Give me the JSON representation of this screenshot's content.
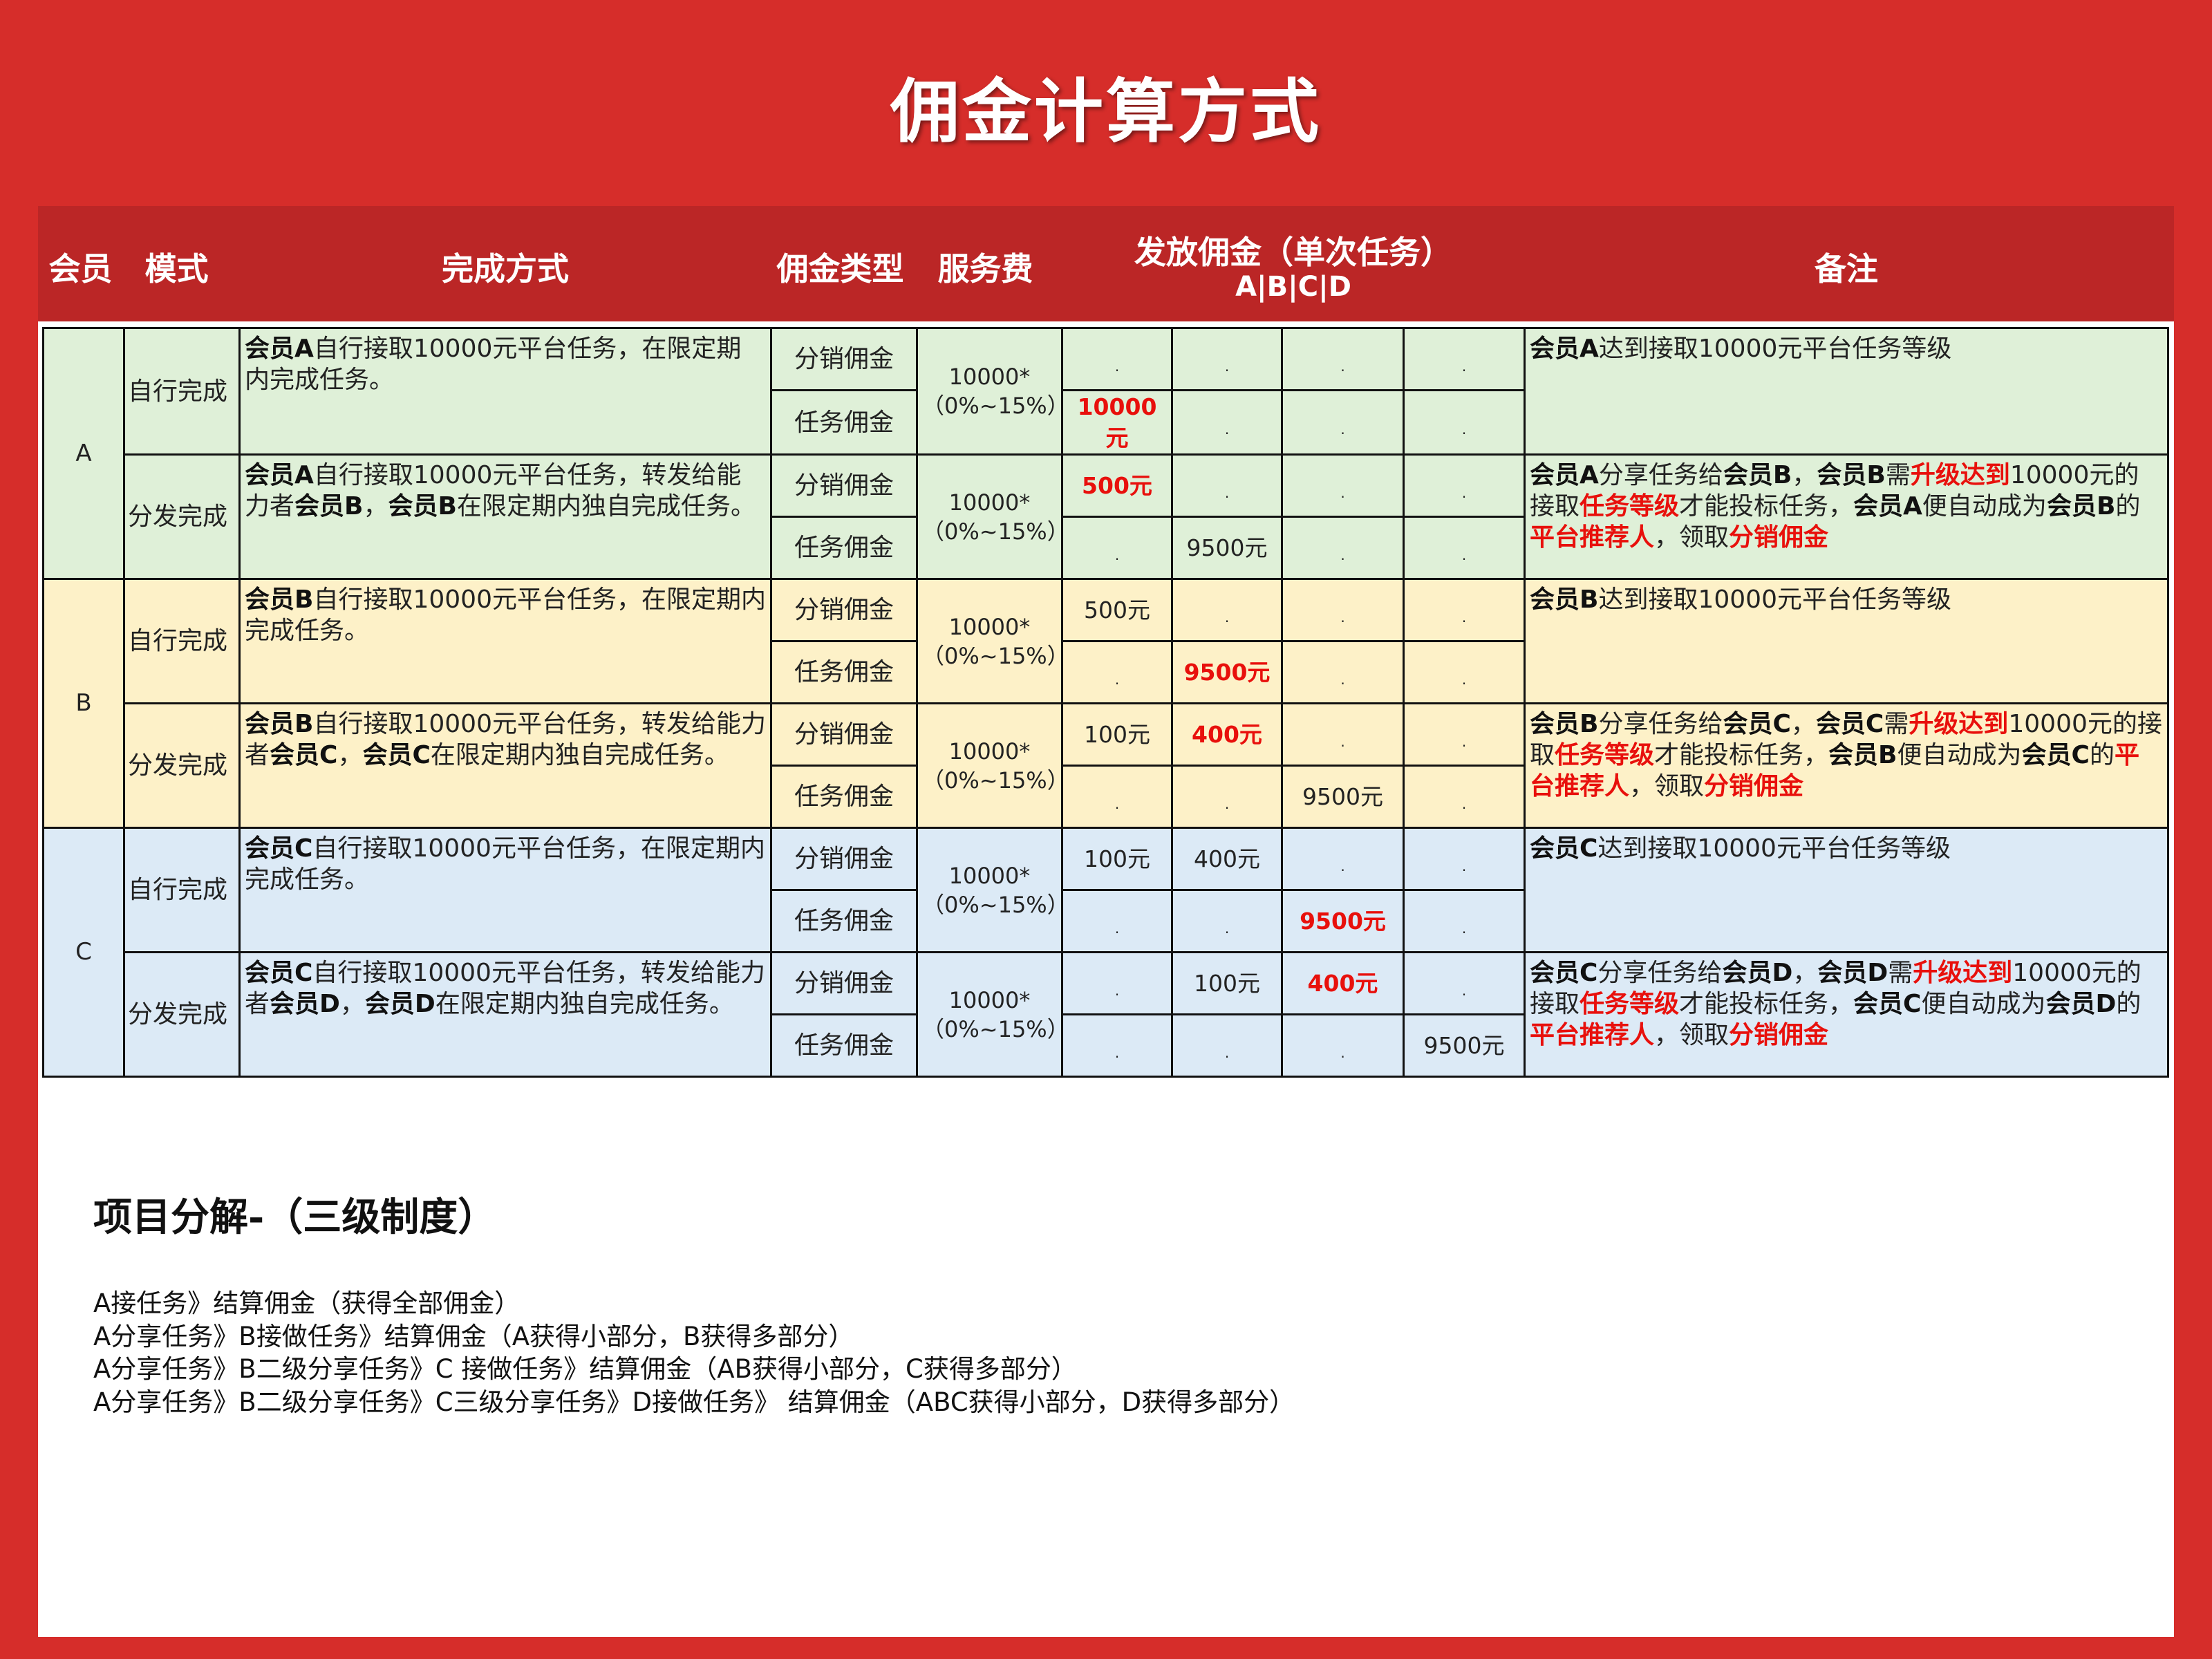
{
  "title": "佣金计算方式",
  "colors": {
    "background": "#d62d2a",
    "header_band": "#bb2626",
    "highlight": "#e8100c",
    "row_A": "#dff0d8",
    "row_B": "#fdf1c8",
    "row_C": "#dceaf6"
  },
  "table": {
    "headers": {
      "member": "会员",
      "mode": "模式",
      "method": "完成方式",
      "type": "佣金类型",
      "fee": "服务费",
      "payout": "发放佣金（单次任务）",
      "payout_sub": "A|B|C|D",
      "remark": "备注"
    },
    "members": [
      {
        "label": "A",
        "modes": [
          {
            "label": "自行完成",
            "method": [
              {
                "t": "会员A",
                "s": "b"
              },
              {
                "t": "自行接取10000元平台任务，在限定期内完成任务。",
                "s": "n"
              }
            ],
            "fee": [
              "10000*",
              "（0%~15%）"
            ],
            "rows": [
              {
                "type": "分销佣金",
                "values": [
                  {
                    "t": ".",
                    "s": "d"
                  },
                  {
                    "t": ".",
                    "s": "d"
                  },
                  {
                    "t": ".",
                    "s": "d"
                  },
                  {
                    "t": ".",
                    "s": "d"
                  }
                ]
              },
              {
                "type": "任务佣金",
                "values": [
                  {
                    "t": "10000元",
                    "s": "r"
                  },
                  {
                    "t": ".",
                    "s": "d"
                  },
                  {
                    "t": ".",
                    "s": "d"
                  },
                  {
                    "t": ".",
                    "s": "d"
                  }
                ]
              }
            ],
            "remark": [
              {
                "t": "会员A",
                "s": "b"
              },
              {
                "t": "达到接取10000元平台任务等级",
                "s": "n"
              }
            ]
          },
          {
            "label": "分发完成",
            "method": [
              {
                "t": "会员A",
                "s": "b"
              },
              {
                "t": "自行接取10000元平台任务，转发给能力者",
                "s": "n"
              },
              {
                "t": "会员B",
                "s": "b"
              },
              {
                "t": "，",
                "s": "n"
              },
              {
                "t": "会员B",
                "s": "b"
              },
              {
                "t": "在限定期内独自完成任务。",
                "s": "n"
              }
            ],
            "fee": [
              "10000*",
              "（0%~15%）"
            ],
            "rows": [
              {
                "type": "分销佣金",
                "values": [
                  {
                    "t": "500元",
                    "s": "r"
                  },
                  {
                    "t": ".",
                    "s": "d"
                  },
                  {
                    "t": ".",
                    "s": "d"
                  },
                  {
                    "t": ".",
                    "s": "d"
                  }
                ]
              },
              {
                "type": "任务佣金",
                "values": [
                  {
                    "t": ".",
                    "s": "d"
                  },
                  {
                    "t": "9500元",
                    "s": "n"
                  },
                  {
                    "t": ".",
                    "s": "d"
                  },
                  {
                    "t": ".",
                    "s": "d"
                  }
                ]
              }
            ],
            "remark": [
              {
                "t": "会员A",
                "s": "b"
              },
              {
                "t": "分享任务给",
                "s": "n"
              },
              {
                "t": "会员B",
                "s": "b"
              },
              {
                "t": "，",
                "s": "n"
              },
              {
                "t": "会员B",
                "s": "b"
              },
              {
                "t": "需",
                "s": "n"
              },
              {
                "t": "升级达到",
                "s": "r"
              },
              {
                "t": "10000元的接取",
                "s": "n"
              },
              {
                "t": "任务等级",
                "s": "r"
              },
              {
                "t": "才能投标任务，",
                "s": "n"
              },
              {
                "t": "会员A",
                "s": "b"
              },
              {
                "t": "便自动成为",
                "s": "n"
              },
              {
                "t": "会员B",
                "s": "b"
              },
              {
                "t": "的",
                "s": "n"
              },
              {
                "t": "平台推荐人",
                "s": "r"
              },
              {
                "t": "，领取",
                "s": "n"
              },
              {
                "t": "分销佣金",
                "s": "r"
              }
            ]
          }
        ]
      },
      {
        "label": "B",
        "modes": [
          {
            "label": "自行完成",
            "method": [
              {
                "t": "会员B",
                "s": "b"
              },
              {
                "t": "自行接取10000元平台任务，在限定期内完成任务。",
                "s": "n"
              }
            ],
            "fee": [
              "10000*",
              "（0%~15%）"
            ],
            "rows": [
              {
                "type": "分销佣金",
                "values": [
                  {
                    "t": "500元",
                    "s": "n"
                  },
                  {
                    "t": ".",
                    "s": "d"
                  },
                  {
                    "t": ".",
                    "s": "d"
                  },
                  {
                    "t": ".",
                    "s": "d"
                  }
                ]
              },
              {
                "type": "任务佣金",
                "values": [
                  {
                    "t": ".",
                    "s": "d"
                  },
                  {
                    "t": "9500元",
                    "s": "r"
                  },
                  {
                    "t": ".",
                    "s": "d"
                  },
                  {
                    "t": ".",
                    "s": "d"
                  }
                ]
              }
            ],
            "remark": [
              {
                "t": "会员B",
                "s": "b"
              },
              {
                "t": "达到接取10000元平台任务等级",
                "s": "n"
              }
            ]
          },
          {
            "label": "分发完成",
            "method": [
              {
                "t": "会员B",
                "s": "b"
              },
              {
                "t": "自行接取10000元平台任务，转发给能力者",
                "s": "n"
              },
              {
                "t": "会员C",
                "s": "b"
              },
              {
                "t": "，",
                "s": "n"
              },
              {
                "t": "会员C",
                "s": "b"
              },
              {
                "t": "在限定期内独自完成任务。",
                "s": "n"
              }
            ],
            "fee": [
              "10000*",
              "（0%~15%）"
            ],
            "rows": [
              {
                "type": "分销佣金",
                "values": [
                  {
                    "t": "100元",
                    "s": "n"
                  },
                  {
                    "t": "400元",
                    "s": "r"
                  },
                  {
                    "t": ".",
                    "s": "d"
                  },
                  {
                    "t": ".",
                    "s": "d"
                  }
                ]
              },
              {
                "type": "任务佣金",
                "values": [
                  {
                    "t": ".",
                    "s": "d"
                  },
                  {
                    "t": ".",
                    "s": "d"
                  },
                  {
                    "t": "9500元",
                    "s": "n"
                  },
                  {
                    "t": ".",
                    "s": "d"
                  }
                ]
              }
            ],
            "remark": [
              {
                "t": "会员B",
                "s": "b"
              },
              {
                "t": "分享任务给",
                "s": "n"
              },
              {
                "t": "会员C",
                "s": "b"
              },
              {
                "t": "，",
                "s": "n"
              },
              {
                "t": "会员C",
                "s": "b"
              },
              {
                "t": "需",
                "s": "n"
              },
              {
                "t": "升级达到",
                "s": "r"
              },
              {
                "t": "10000元的接取",
                "s": "n"
              },
              {
                "t": "任务等级",
                "s": "r"
              },
              {
                "t": "才能投标任务，",
                "s": "n"
              },
              {
                "t": "会员B",
                "s": "b"
              },
              {
                "t": "便自动成为",
                "s": "n"
              },
              {
                "t": "会员C",
                "s": "b"
              },
              {
                "t": "的",
                "s": "n"
              },
              {
                "t": "平台推荐人",
                "s": "r"
              },
              {
                "t": "，领取",
                "s": "n"
              },
              {
                "t": "分销佣金",
                "s": "r"
              }
            ]
          }
        ]
      },
      {
        "label": "C",
        "modes": [
          {
            "label": "自行完成",
            "method": [
              {
                "t": "会员C",
                "s": "b"
              },
              {
                "t": "自行接取10000元平台任务，在限定期内完成任务。",
                "s": "n"
              }
            ],
            "fee": [
              "10000*",
              "（0%~15%）"
            ],
            "rows": [
              {
                "type": "分销佣金",
                "values": [
                  {
                    "t": "100元",
                    "s": "n"
                  },
                  {
                    "t": "400元",
                    "s": "n"
                  },
                  {
                    "t": ".",
                    "s": "d"
                  },
                  {
                    "t": ".",
                    "s": "d"
                  }
                ]
              },
              {
                "type": "任务佣金",
                "values": [
                  {
                    "t": ".",
                    "s": "d"
                  },
                  {
                    "t": ".",
                    "s": "d"
                  },
                  {
                    "t": "9500元",
                    "s": "r"
                  },
                  {
                    "t": ".",
                    "s": "d"
                  }
                ]
              }
            ],
            "remark": [
              {
                "t": "会员C",
                "s": "b"
              },
              {
                "t": "达到接取10000元平台任务等级",
                "s": "n"
              }
            ]
          },
          {
            "label": "分发完成",
            "method": [
              {
                "t": "会员C",
                "s": "b"
              },
              {
                "t": "自行接取10000元平台任务，转发给能力者",
                "s": "n"
              },
              {
                "t": "会员D",
                "s": "b"
              },
              {
                "t": "，",
                "s": "n"
              },
              {
                "t": "会员D",
                "s": "b"
              },
              {
                "t": "在限定期内独自完成任务。",
                "s": "n"
              }
            ],
            "fee": [
              "10000*",
              "（0%~15%）"
            ],
            "rows": [
              {
                "type": "分销佣金",
                "values": [
                  {
                    "t": ".",
                    "s": "d"
                  },
                  {
                    "t": "100元",
                    "s": "n"
                  },
                  {
                    "t": "400元",
                    "s": "r"
                  },
                  {
                    "t": ".",
                    "s": "d"
                  }
                ]
              },
              {
                "type": "任务佣金",
                "values": [
                  {
                    "t": ".",
                    "s": "d"
                  },
                  {
                    "t": ".",
                    "s": "d"
                  },
                  {
                    "t": ".",
                    "s": "d"
                  },
                  {
                    "t": "9500元",
                    "s": "n"
                  }
                ]
              }
            ],
            "remark": [
              {
                "t": "会员C",
                "s": "b"
              },
              {
                "t": "分享任务给",
                "s": "n"
              },
              {
                "t": "会员D",
                "s": "b"
              },
              {
                "t": "，",
                "s": "n"
              },
              {
                "t": "会员D",
                "s": "b"
              },
              {
                "t": "需",
                "s": "n"
              },
              {
                "t": "升级达到",
                "s": "r"
              },
              {
                "t": "10000元的接取",
                "s": "n"
              },
              {
                "t": "任务等级",
                "s": "r"
              },
              {
                "t": "才能投标任务，",
                "s": "n"
              },
              {
                "t": "会员C",
                "s": "b"
              },
              {
                "t": "便自动成为",
                "s": "n"
              },
              {
                "t": "会员D",
                "s": "b"
              },
              {
                "t": "的",
                "s": "n"
              },
              {
                "t": "平台推荐人",
                "s": "r"
              },
              {
                "t": "，领取",
                "s": "n"
              },
              {
                "t": "分销佣金",
                "s": "r"
              }
            ]
          }
        ]
      }
    ]
  },
  "breakdown": {
    "heading": "项目分解-（三级制度）",
    "lines": [
      "A接任务》结算佣金（获得全部佣金）",
      "A分享任务》B接做任务》结算佣金（A获得小部分，B获得多部分）",
      "A分享任务》B二级分享任务》C 接做任务》结算佣金（AB获得小部分，C获得多部分）",
      "A分享任务》B二级分享任务》C三级分享任务》D接做任务》 结算佣金（ABC获得小部分，D获得多部分）"
    ]
  }
}
